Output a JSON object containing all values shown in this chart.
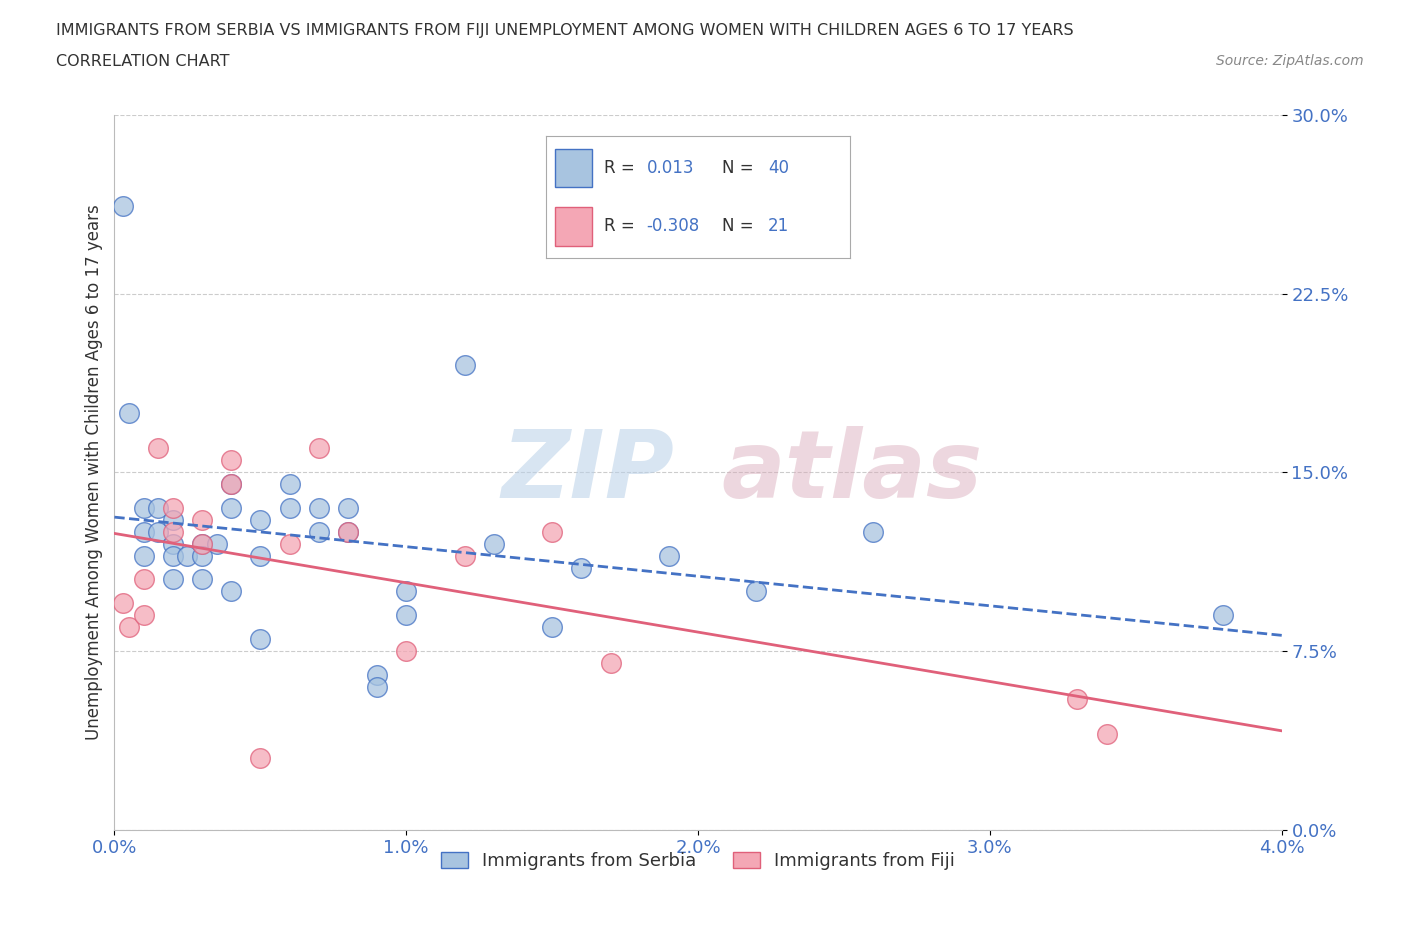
{
  "title_line1": "IMMIGRANTS FROM SERBIA VS IMMIGRANTS FROM FIJI UNEMPLOYMENT AMONG WOMEN WITH CHILDREN AGES 6 TO 17 YEARS",
  "title_line2": "CORRELATION CHART",
  "source": "Source: ZipAtlas.com",
  "ylabel": "Unemployment Among Women with Children Ages 6 to 17 years",
  "xlim": [
    0.0,
    0.04
  ],
  "ylim": [
    0.0,
    0.3
  ],
  "xticks": [
    0.0,
    0.01,
    0.02,
    0.03,
    0.04
  ],
  "xtick_labels": [
    "0.0%",
    "1.0%",
    "2.0%",
    "3.0%",
    "4.0%"
  ],
  "ytick_labels": [
    "0.0%",
    "7.5%",
    "15.0%",
    "22.5%",
    "30.0%"
  ],
  "yticks": [
    0.0,
    0.075,
    0.15,
    0.225,
    0.3
  ],
  "serbia_color": "#a8c4e0",
  "fiji_color": "#f4a7b5",
  "serbia_line_color": "#4472c4",
  "fiji_line_color": "#e0607a",
  "R_serbia": 0.013,
  "N_serbia": 40,
  "R_fiji": -0.308,
  "N_fiji": 21,
  "background_color": "#ffffff",
  "grid_color": "#cccccc",
  "legend_label_serbia": "Immigrants from Serbia",
  "legend_label_fiji": "Immigrants from Fiji",
  "serbia_x": [
    0.0003,
    0.0005,
    0.001,
    0.001,
    0.001,
    0.0015,
    0.0015,
    0.002,
    0.002,
    0.002,
    0.002,
    0.0025,
    0.003,
    0.003,
    0.003,
    0.0035,
    0.004,
    0.004,
    0.004,
    0.005,
    0.005,
    0.005,
    0.006,
    0.006,
    0.007,
    0.007,
    0.008,
    0.008,
    0.009,
    0.009,
    0.01,
    0.01,
    0.012,
    0.013,
    0.015,
    0.016,
    0.019,
    0.022,
    0.026,
    0.038
  ],
  "serbia_y": [
    0.262,
    0.175,
    0.135,
    0.125,
    0.115,
    0.135,
    0.125,
    0.13,
    0.12,
    0.115,
    0.105,
    0.115,
    0.12,
    0.115,
    0.105,
    0.12,
    0.145,
    0.135,
    0.1,
    0.13,
    0.115,
    0.08,
    0.145,
    0.135,
    0.135,
    0.125,
    0.135,
    0.125,
    0.065,
    0.06,
    0.1,
    0.09,
    0.195,
    0.12,
    0.085,
    0.11,
    0.115,
    0.1,
    0.125,
    0.09
  ],
  "fiji_x": [
    0.0003,
    0.0005,
    0.001,
    0.001,
    0.0015,
    0.002,
    0.002,
    0.003,
    0.003,
    0.004,
    0.004,
    0.005,
    0.006,
    0.007,
    0.008,
    0.01,
    0.012,
    0.015,
    0.017,
    0.033,
    0.034
  ],
  "fiji_y": [
    0.095,
    0.085,
    0.105,
    0.09,
    0.16,
    0.135,
    0.125,
    0.13,
    0.12,
    0.155,
    0.145,
    0.03,
    0.12,
    0.16,
    0.125,
    0.075,
    0.115,
    0.125,
    0.07,
    0.055,
    0.04
  ]
}
